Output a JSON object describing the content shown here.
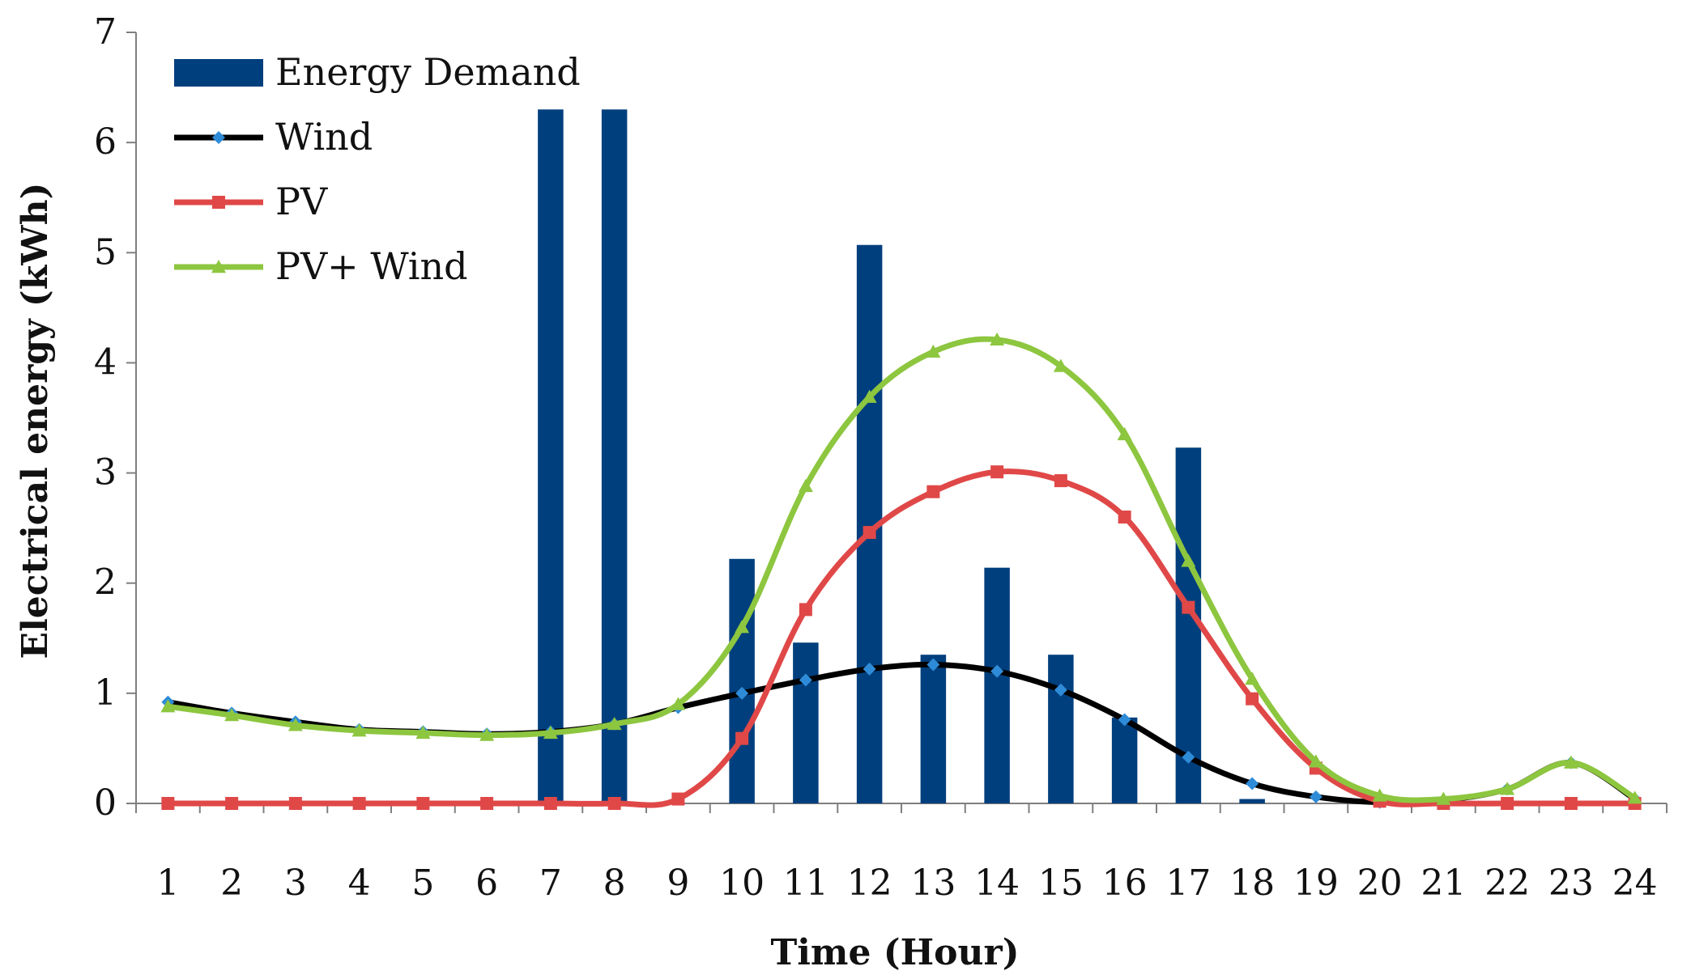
{
  "chart_data": {
    "type": "bar+line",
    "title": "",
    "xlabel": "Time (Hour)",
    "ylabel": "Electrical energy (kWh)",
    "ylim": [
      0,
      7
    ],
    "yticks": [
      "0",
      "1",
      "2",
      "3",
      "4",
      "5",
      "6",
      "7"
    ],
    "categories": [
      "1",
      "2",
      "3",
      "4",
      "5",
      "6",
      "7",
      "8",
      "9",
      "10",
      "11",
      "12",
      "13",
      "14",
      "15",
      "16",
      "17",
      "18",
      "19",
      "20",
      "21",
      "22",
      "23",
      "24"
    ],
    "series": [
      {
        "name": "Energy Demand",
        "kind": "bar",
        "color": "#003F7D",
        "values": [
          0,
          0,
          0,
          0,
          0,
          0,
          6.3,
          6.3,
          0,
          2.22,
          1.46,
          5.07,
          1.35,
          2.14,
          1.35,
          0.78,
          3.23,
          0.04,
          0,
          0,
          0,
          0,
          0,
          0
        ]
      },
      {
        "name": "Wind",
        "kind": "line",
        "color": "#000000",
        "marker": "diamond",
        "marker_color": "#2E8BD8",
        "values": [
          0.92,
          0.82,
          0.74,
          0.67,
          0.65,
          0.63,
          0.65,
          0.72,
          0.87,
          1.0,
          1.12,
          1.22,
          1.26,
          1.2,
          1.03,
          0.76,
          0.42,
          0.18,
          0.06,
          0.01,
          0.03,
          0.13,
          0.37,
          0.04
        ]
      },
      {
        "name": "PV",
        "kind": "line",
        "color": "#E04848",
        "marker": "square",
        "marker_color": "#E04848",
        "values": [
          0,
          0,
          0,
          0,
          0,
          0,
          0,
          0,
          0.04,
          0.59,
          1.76,
          2.46,
          2.83,
          3.01,
          2.93,
          2.6,
          1.78,
          0.95,
          0.32,
          0.02,
          0,
          0,
          0,
          0
        ]
      },
      {
        "name": "PV+ Wind",
        "kind": "line",
        "color": "#8DC63F",
        "marker": "triangle",
        "marker_color": "#8DC63F",
        "values": [
          0.88,
          0.8,
          0.71,
          0.66,
          0.64,
          0.62,
          0.64,
          0.72,
          0.9,
          1.6,
          2.88,
          3.69,
          4.1,
          4.21,
          3.97,
          3.35,
          2.2,
          1.13,
          0.38,
          0.07,
          0.04,
          0.13,
          0.37,
          0.05
        ]
      }
    ],
    "legend": [
      "Energy Demand",
      "Wind",
      "PV",
      "PV+ Wind"
    ],
    "legend_position": "top-left",
    "grid": false
  }
}
